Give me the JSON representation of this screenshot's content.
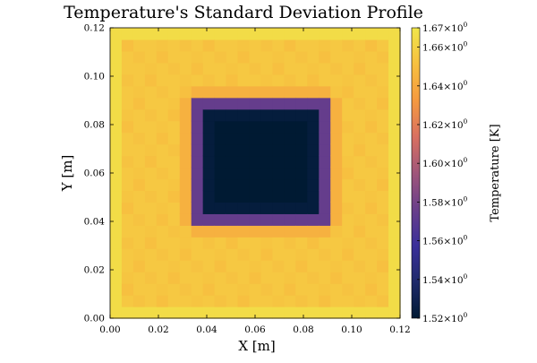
{
  "chart_data": {
    "type": "heatmap",
    "title": "Temperature's Standard Deviation Profile",
    "xlabel": "X [m]",
    "ylabel": "Y [m]",
    "xlim": [
      0,
      0.12
    ],
    "ylim": [
      0,
      0.12
    ],
    "xticks": [
      "0.00",
      "0.02",
      "0.04",
      "0.06",
      "0.08",
      "0.10",
      "0.12"
    ],
    "yticks": [
      "0.00",
      "0.02",
      "0.04",
      "0.06",
      "0.08",
      "0.10",
      "0.12"
    ],
    "grid_cells": [
      25,
      25
    ],
    "cell_size": 0.0048,
    "colorbar": {
      "label": "Temperature [K]",
      "range": [
        1.52,
        1.67
      ],
      "ticks": [
        {
          "value": 1.52,
          "mantissa": "1.52",
          "base": "×10",
          "exp": "0"
        },
        {
          "value": 1.54,
          "mantissa": "1.54",
          "base": "×10",
          "exp": "0"
        },
        {
          "value": 1.56,
          "mantissa": "1.56",
          "base": "×10",
          "exp": "0"
        },
        {
          "value": 1.58,
          "mantissa": "1.58",
          "base": "×10",
          "exp": "0"
        },
        {
          "value": 1.6,
          "mantissa": "1.60",
          "base": "×10",
          "exp": "0"
        },
        {
          "value": 1.62,
          "mantissa": "1.62",
          "base": "×10",
          "exp": "0"
        },
        {
          "value": 1.64,
          "mantissa": "1.64",
          "base": "×10",
          "exp": "0"
        },
        {
          "value": 1.66,
          "mantissa": "1.66",
          "base": "×10",
          "exp": "0"
        },
        {
          "value": 1.67,
          "mantissa": "1.67",
          "base": "×10",
          "exp": "0"
        }
      ],
      "colormap": [
        "#001a33",
        "#1f2a6b",
        "#3a2f9a",
        "#6a3f8a",
        "#a0567a",
        "#d97060",
        "#f59a40",
        "#f7c040",
        "#f0e64a"
      ]
    },
    "field_description": {
      "outer_band_value": 1.665,
      "background_value": 1.655,
      "cold_region_x": [
        0.0336,
        0.0912
      ],
      "cold_region_y": [
        0.0384,
        0.0912
      ],
      "min_value": 1.52
    }
  }
}
